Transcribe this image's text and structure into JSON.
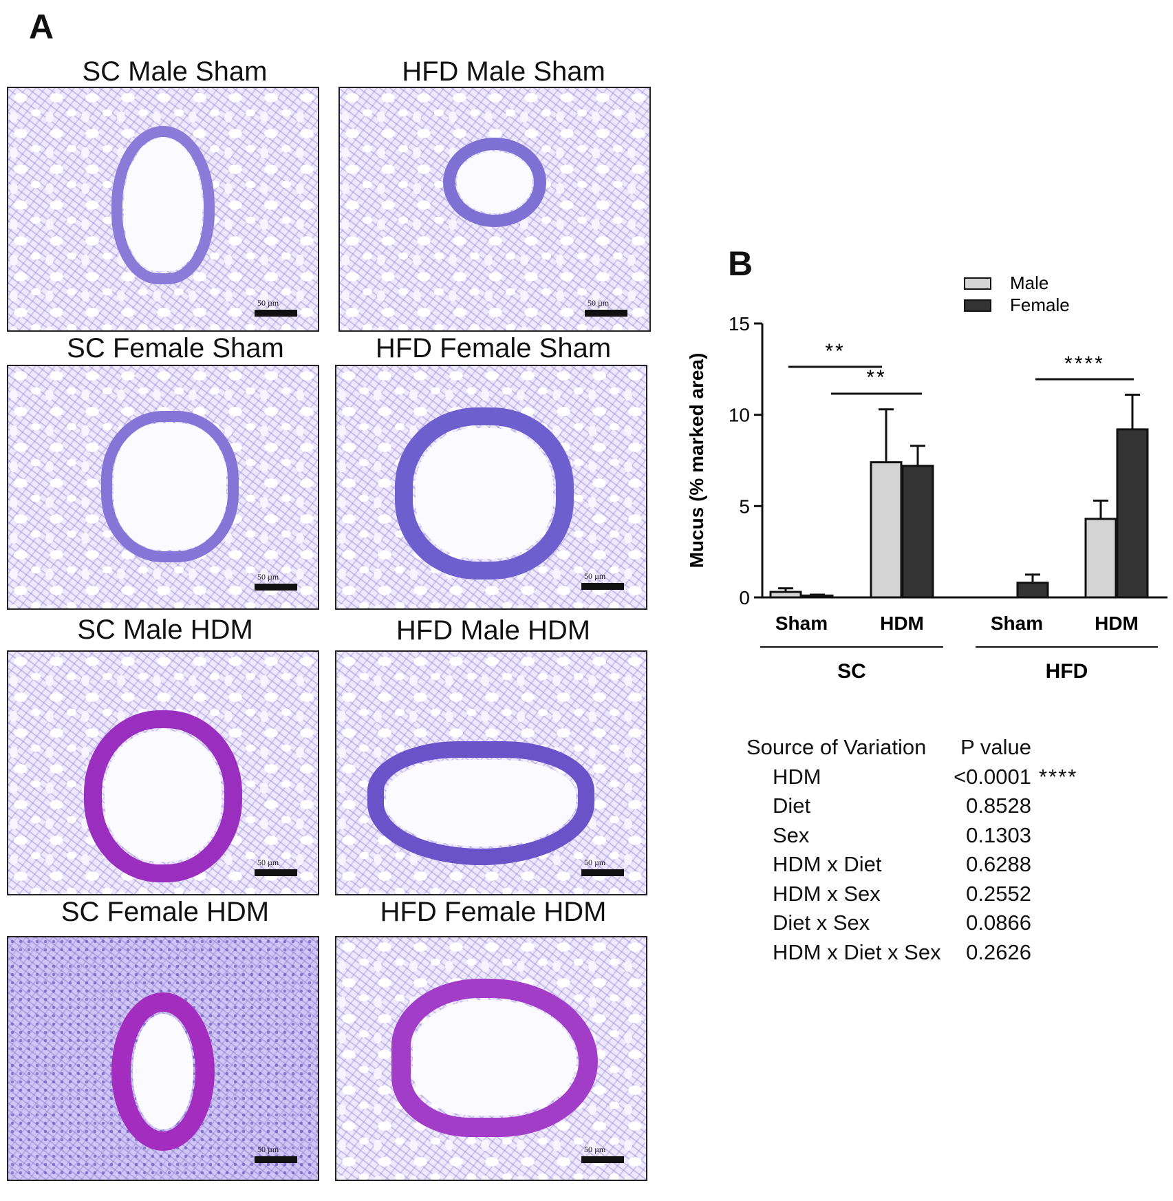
{
  "panel_a": {
    "letter": "A",
    "images": [
      {
        "caption": "SC Male Sham",
        "scale_label": "50 µm"
      },
      {
        "caption": "HFD Male Sham",
        "scale_label": "50 µm"
      },
      {
        "caption": "SC Female Sham",
        "scale_label": "50 µm"
      },
      {
        "caption": "HFD Female Sham",
        "scale_label": "50 µm"
      },
      {
        "caption": "SC Male HDM",
        "scale_label": "50 µm"
      },
      {
        "caption": "HFD Male HDM",
        "scale_label": "50 µm"
      },
      {
        "caption": "SC Female HDM",
        "scale_label": "50 µm"
      },
      {
        "caption": "HFD Female  HDM",
        "scale_label": "50 µm"
      }
    ]
  },
  "panel_b": {
    "letter": "B"
  },
  "colors": {
    "male": "#d4d4d4",
    "female": "#333333",
    "axis": "#111111"
  },
  "chart_data": {
    "type": "bar",
    "ylabel": "Mucus (% marked area)",
    "ylim": [
      0,
      15
    ],
    "yticks": [
      0,
      5,
      10,
      15
    ],
    "categories": [
      "Sham",
      "HDM",
      "Sham",
      "HDM"
    ],
    "groups": [
      {
        "label": "SC",
        "categories": [
          0,
          1
        ]
      },
      {
        "label": "HFD",
        "categories": [
          2,
          3
        ]
      }
    ],
    "legend_position": "top-right",
    "series": [
      {
        "name": "Male",
        "values": [
          0.3,
          7.4,
          0,
          4.3
        ],
        "errors": [
          0.2,
          2.9,
          0,
          1.0
        ]
      },
      {
        "name": "Female",
        "values": [
          0.1,
          7.2,
          0.8,
          9.2
        ],
        "errors": [
          0.05,
          1.1,
          0.45,
          1.9
        ]
      }
    ],
    "significance": [
      {
        "label": "**",
        "from": "SC Male Sham",
        "to": "SC Male HDM"
      },
      {
        "label": "**",
        "from": "SC Female Sham",
        "to": "SC Female HDM"
      },
      {
        "label": "****",
        "from": "HFD Female Sham",
        "to": "HFD Female HDM"
      }
    ]
  },
  "stats_table": {
    "header": {
      "source": "Source of Variation",
      "p": "P value"
    },
    "rows": [
      {
        "source": "HDM",
        "p": "<0.0001",
        "sig": "****"
      },
      {
        "source": "Diet",
        "p": "0.8528",
        "sig": ""
      },
      {
        "source": "Sex",
        "p": "0.1303",
        "sig": ""
      },
      {
        "source": "HDM x Diet",
        "p": "0.6288",
        "sig": ""
      },
      {
        "source": "HDM x Sex",
        "p": "0.2552",
        "sig": ""
      },
      {
        "source": "Diet x Sex",
        "p": "0.0866",
        "sig": ""
      },
      {
        "source": "HDM x Diet x Sex",
        "p": "0.2626",
        "sig": ""
      }
    ]
  }
}
